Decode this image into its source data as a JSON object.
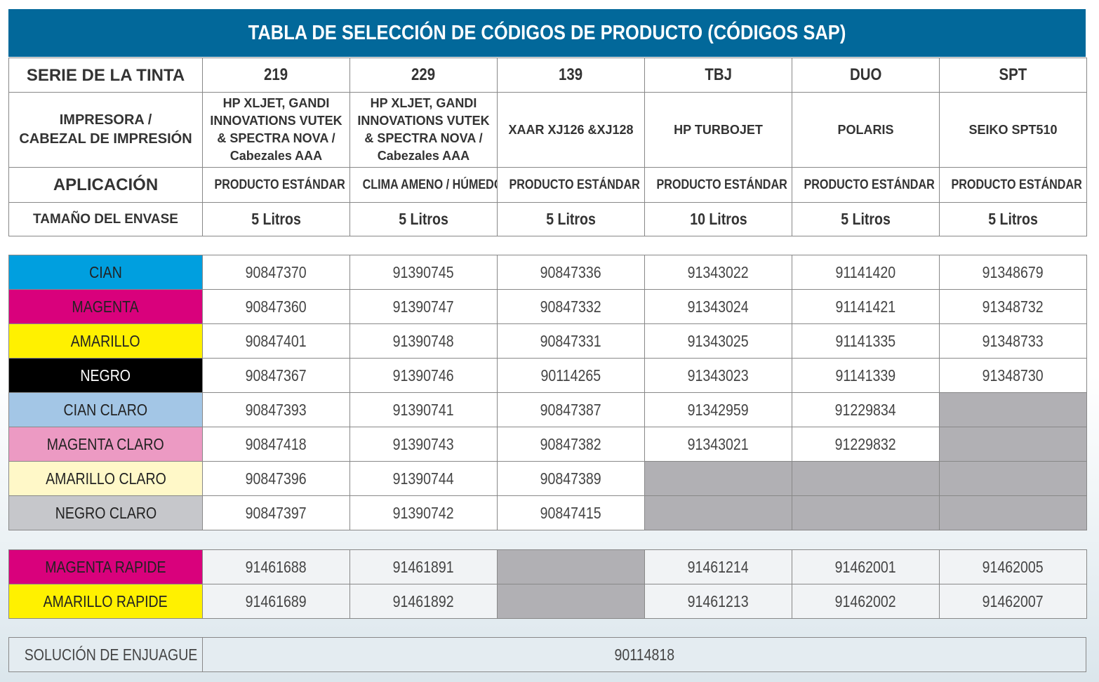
{
  "title": "TABLA DE SELECCIÓN DE CÓDIGOS DE PRODUCTO (CÓDIGOS SAP)",
  "header": {
    "series_label": "SERIE DE LA TINTA",
    "printer_label_1": "IMPRESORA /",
    "printer_label_2": "CABEZAL DE IMPRESIÓN",
    "application_label": "APLICACIÓN",
    "size_label": "TAMAÑO DEL ENVASE",
    "columns": [
      {
        "series": "219",
        "printer": [
          "HP XLJET, GANDI",
          "INNOVATIONS VUTEK",
          "& SPECTRA NOVA /",
          "Cabezales AAA"
        ],
        "application": "PRODUCTO ESTÁNDAR",
        "size": "5 Litros"
      },
      {
        "series": "229",
        "printer": [
          "HP XLJET, GANDI",
          "INNOVATIONS VUTEK",
          "& SPECTRA NOVA /",
          "Cabezales AAA"
        ],
        "application": "CLIMA AMENO / HÚMEDO",
        "size": "5 Litros"
      },
      {
        "series": "139",
        "printer": [
          "XAAR XJ126 &XJ128"
        ],
        "application": "PRODUCTO ESTÁNDAR",
        "size": "5 Litros"
      },
      {
        "series": "TBJ",
        "printer": [
          "HP TURBOJET"
        ],
        "application": "PRODUCTO ESTÁNDAR",
        "size": "10 Litros"
      },
      {
        "series": "DUO",
        "printer": [
          "POLARIS"
        ],
        "application": "PRODUCTO ESTÁNDAR",
        "size": "5 Litros"
      },
      {
        "series": "SPT",
        "printer": [
          "SEIKO SPT510"
        ],
        "application": "PRODUCTO ESTÁNDAR",
        "size": "5 Litros"
      }
    ]
  },
  "colors": {
    "cian": "#009fdf",
    "magenta": "#d9017c",
    "amarillo": "#fff100",
    "negro": "#000000",
    "cian_claro": "#a3c6e6",
    "magenta_claro": "#ec9ac3",
    "amarillo_claro": "#fff8c8",
    "negro_claro": "#c6c7cb",
    "not_available": "#b1b0b4"
  },
  "ink_rows": [
    {
      "name": "CIAN",
      "color": "#009fdf",
      "text": "#222",
      "codes": [
        "90847370",
        "91390745",
        "90847336",
        "91343022",
        "91141420",
        "91348679"
      ]
    },
    {
      "name": "MAGENTA",
      "color": "#d9017c",
      "text": "#222",
      "codes": [
        "90847360",
        "91390747",
        "90847332",
        "91343024",
        "91141421",
        "91348732"
      ]
    },
    {
      "name": "AMARILLO",
      "color": "#fff100",
      "text": "#222",
      "codes": [
        "90847401",
        "91390748",
        "90847331",
        "91343025",
        "91141335",
        "91348733"
      ]
    },
    {
      "name": "NEGRO",
      "color": "#000000",
      "text": "#ffffff",
      "codes": [
        "90847367",
        "91390746",
        "90114265",
        "91343023",
        "91141339",
        "91348730"
      ]
    },
    {
      "name": "CIAN CLARO",
      "color": "#a3c6e6",
      "text": "#222",
      "codes": [
        "90847393",
        "91390741",
        "90847387",
        "91342959",
        "91229834",
        null
      ]
    },
    {
      "name": "MAGENTA CLARO",
      "color": "#ec9ac3",
      "text": "#222",
      "codes": [
        "90847418",
        "91390743",
        "90847382",
        "91343021",
        "91229832",
        null
      ]
    },
    {
      "name": "AMARILLO CLARO",
      "color": "#fff8c8",
      "text": "#222",
      "codes": [
        "90847396",
        "91390744",
        "90847389",
        null,
        null,
        null
      ]
    },
    {
      "name": "NEGRO CLARO",
      "color": "#c6c7cb",
      "text": "#222",
      "codes": [
        "90847397",
        "91390742",
        "90847415",
        null,
        null,
        null
      ]
    }
  ],
  "rapide_rows": [
    {
      "name": "MAGENTA RAPIDE",
      "color": "#d9017c",
      "text": "#222",
      "codes": [
        "91461688",
        "91461891",
        null,
        "91461214",
        "91462001",
        "91462005"
      ]
    },
    {
      "name": "AMARILLO RAPIDE",
      "color": "#fff100",
      "text": "#222",
      "codes": [
        "91461689",
        "91461892",
        null,
        "91461213",
        "91462002",
        "91462007"
      ]
    }
  ],
  "rinse": {
    "label": "SOLUCIÓN DE ENJUAGUE",
    "code": "90114818"
  }
}
